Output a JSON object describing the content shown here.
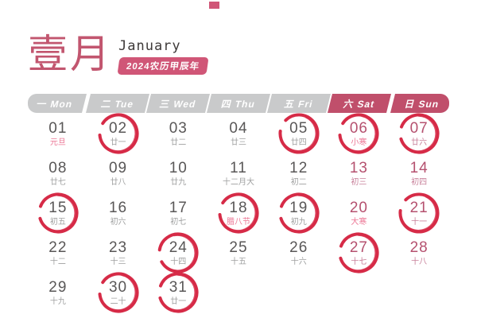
{
  "header": {
    "title_cn": "壹月",
    "title_en": "January",
    "badge": "2024农历甲辰年"
  },
  "weekdays": [
    {
      "label": "一 Mon",
      "weekend": false
    },
    {
      "label": "二 Tue",
      "weekend": false
    },
    {
      "label": "三 Wed",
      "weekend": false
    },
    {
      "label": "四 Thu",
      "weekend": false
    },
    {
      "label": "五 Fri",
      "weekend": false
    },
    {
      "label": "六 Sat",
      "weekend": true
    },
    {
      "label": "日 Sun",
      "weekend": true
    }
  ],
  "days": [
    {
      "num": "01",
      "lunar": "元旦",
      "holiday": true,
      "circled": false
    },
    {
      "num": "02",
      "lunar": "廿一",
      "holiday": false,
      "circled": true
    },
    {
      "num": "03",
      "lunar": "廿二",
      "holiday": false,
      "circled": false
    },
    {
      "num": "04",
      "lunar": "廿三",
      "holiday": false,
      "circled": false
    },
    {
      "num": "05",
      "lunar": "廿四",
      "holiday": false,
      "circled": true
    },
    {
      "num": "06",
      "lunar": "小寒",
      "holiday": true,
      "circled": true
    },
    {
      "num": "07",
      "lunar": "廿六",
      "holiday": false,
      "circled": true
    },
    {
      "num": "08",
      "lunar": "廿七",
      "holiday": false,
      "circled": false
    },
    {
      "num": "09",
      "lunar": "廿八",
      "holiday": false,
      "circled": false
    },
    {
      "num": "10",
      "lunar": "廿九",
      "holiday": false,
      "circled": false
    },
    {
      "num": "11",
      "lunar": "十二月大",
      "holiday": false,
      "circled": false
    },
    {
      "num": "12",
      "lunar": "初二",
      "holiday": false,
      "circled": false
    },
    {
      "num": "13",
      "lunar": "初三",
      "holiday": false,
      "circled": false
    },
    {
      "num": "14",
      "lunar": "初四",
      "holiday": false,
      "circled": false
    },
    {
      "num": "15",
      "lunar": "初五",
      "holiday": false,
      "circled": true
    },
    {
      "num": "16",
      "lunar": "初六",
      "holiday": false,
      "circled": false
    },
    {
      "num": "17",
      "lunar": "初七",
      "holiday": false,
      "circled": false
    },
    {
      "num": "18",
      "lunar": "腊八节",
      "holiday": true,
      "circled": true
    },
    {
      "num": "19",
      "lunar": "初九",
      "holiday": false,
      "circled": true
    },
    {
      "num": "20",
      "lunar": "大寒",
      "holiday": true,
      "circled": false
    },
    {
      "num": "21",
      "lunar": "十一",
      "holiday": false,
      "circled": true
    },
    {
      "num": "22",
      "lunar": "十二",
      "holiday": false,
      "circled": false
    },
    {
      "num": "23",
      "lunar": "十三",
      "holiday": false,
      "circled": false
    },
    {
      "num": "24",
      "lunar": "十四",
      "holiday": false,
      "circled": true
    },
    {
      "num": "25",
      "lunar": "十五",
      "holiday": false,
      "circled": false
    },
    {
      "num": "26",
      "lunar": "十六",
      "holiday": false,
      "circled": false
    },
    {
      "num": "27",
      "lunar": "十七",
      "holiday": false,
      "circled": true
    },
    {
      "num": "28",
      "lunar": "十八",
      "holiday": false,
      "circled": false
    },
    {
      "num": "29",
      "lunar": "十九",
      "holiday": false,
      "circled": false
    },
    {
      "num": "30",
      "lunar": "二十",
      "holiday": false,
      "circled": true
    },
    {
      "num": "31",
      "lunar": "廿一",
      "holiday": false,
      "circled": true
    }
  ],
  "colors": {
    "accent_rose": "#c2566f",
    "badge_bg": "#d05677",
    "weekday_header_bg": "#c9cacb",
    "weekend_header_bg": "#c04f6b",
    "day_number": "#595757",
    "weekend_number": "#b5516f",
    "lunar_label": "#9fa0a0",
    "holiday_label": "#ec7795",
    "circle_red": "#d62b47"
  }
}
